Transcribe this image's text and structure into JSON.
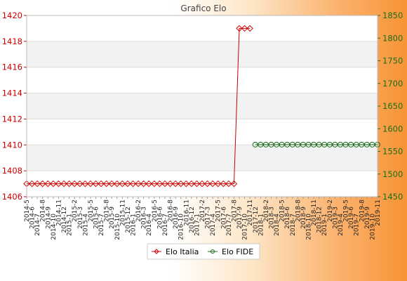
{
  "chart_data": {
    "type": "line",
    "title": "Grafico Elo",
    "xlabel": "",
    "ylabel_left": "",
    "ylabel_right": "",
    "grid": true,
    "grid_band_color": "#f2f2f2",
    "legend_placement": "bottom-center",
    "left_axis": {
      "ylim": [
        1406,
        1420
      ],
      "ticks": [
        1406,
        1408,
        1410,
        1412,
        1414,
        1416,
        1418,
        1420
      ],
      "color": "#cc0000"
    },
    "right_axis": {
      "ylim": [
        1450,
        1850
      ],
      "ticks": [
        1450,
        1500,
        1550,
        1600,
        1650,
        1700,
        1750,
        1800,
        1850
      ],
      "color": "#1a6e1a"
    },
    "x_count": 67,
    "x_tick_labels": [
      "2014-5",
      "2014-6",
      "2014-7",
      "2014-8",
      "2014-9",
      "2014-10",
      "2014-11",
      "2014-12",
      "2015-1",
      "2015-2",
      "2015-3",
      "2015-4",
      "2015-5",
      "2015-6",
      "2015-7",
      "2015-8",
      "2015-9",
      "2015-10",
      "2015-11",
      "2015-12",
      "2016-1",
      "2016-2",
      "2016-3",
      "2016-4",
      "2016-5",
      "2016-6",
      "2016-7",
      "2016-8",
      "2016-9",
      "2016-10",
      "2016-11",
      "2016-12",
      "2017-1",
      "2017-2",
      "2017-3",
      "2017-4",
      "2017-5",
      "2017-6",
      "2017-7",
      "2017-8",
      "2017-9",
      "2017-10",
      "2017-11",
      "2017-12",
      "2018-1",
      "2018-2",
      "2018-3",
      "2018-4",
      "2018-5",
      "2018-6",
      "2018-7",
      "2018-8",
      "2018-9",
      "2018-10",
      "2018-11",
      "2018-12",
      "2019-1",
      "2019-2",
      "2019-3",
      "2019-4",
      "2019-5",
      "2019-6",
      "2019-7",
      "2019-8",
      "2019-9",
      "2019-10",
      "2019-11"
    ],
    "series": [
      {
        "name": "Elo Italia",
        "axis": "left",
        "color": "#cc0000",
        "marker": "diamond",
        "values": [
          1407,
          1407,
          1407,
          1407,
          1407,
          1407,
          1407,
          1407,
          1407,
          1407,
          1407,
          1407,
          1407,
          1407,
          1407,
          1407,
          1407,
          1407,
          1407,
          1407,
          1407,
          1407,
          1407,
          1407,
          1407,
          1407,
          1407,
          1407,
          1407,
          1407,
          1407,
          1407,
          1407,
          1407,
          1407,
          1407,
          1407,
          1407,
          1407,
          1407,
          1419,
          1419,
          1419,
          null,
          null,
          null,
          null,
          null,
          null,
          null,
          null,
          null,
          null,
          null,
          null,
          null,
          null,
          null,
          null,
          null,
          null,
          null,
          null,
          null,
          null,
          null,
          null
        ]
      },
      {
        "name": "Elo FIDE",
        "axis": "right",
        "color": "#1a6e1a",
        "marker": "circle",
        "values": [
          null,
          null,
          null,
          null,
          null,
          null,
          null,
          null,
          null,
          null,
          null,
          null,
          null,
          null,
          null,
          null,
          null,
          null,
          null,
          null,
          null,
          null,
          null,
          null,
          null,
          null,
          null,
          null,
          null,
          null,
          null,
          null,
          null,
          null,
          null,
          null,
          null,
          null,
          null,
          null,
          null,
          null,
          null,
          1565,
          1565,
          1565,
          1565,
          1565,
          1565,
          1565,
          1565,
          1565,
          1565,
          1565,
          1565,
          1565,
          1565,
          1565,
          1565,
          1565,
          1565,
          1565,
          1565,
          1565,
          1565,
          1565,
          1565
        ]
      }
    ]
  }
}
